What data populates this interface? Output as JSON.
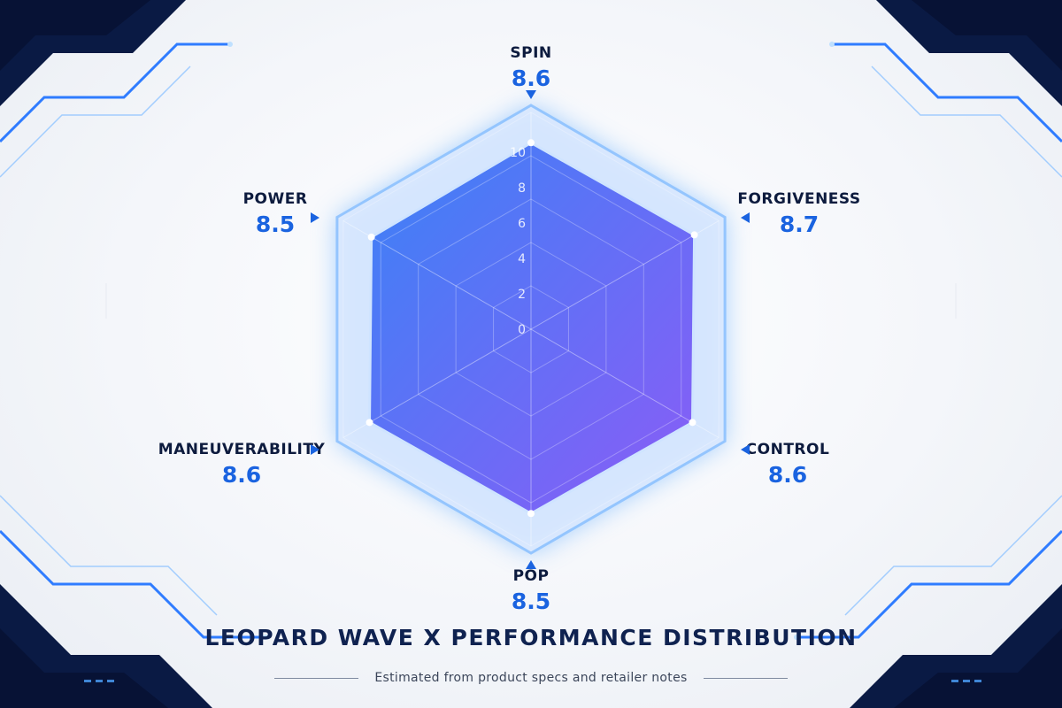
{
  "chart_data": {
    "type": "radar",
    "title": "LEOPARD WAVE X PERFORMANCE DISTRIBUTION",
    "subtitle": "Estimated from product specs and retailer notes",
    "axes": [
      "SPIN",
      "FORGIVENESS",
      "CONTROL",
      "POP",
      "MANEUVERABILITY",
      "POWER"
    ],
    "values": [
      8.6,
      8.7,
      8.6,
      8.5,
      8.6,
      8.5
    ],
    "value_labels": [
      "8.6",
      "8.7",
      "8.6",
      "8.5",
      "8.6",
      "8.5"
    ],
    "ticks": [
      "0",
      "2",
      "4",
      "6",
      "8",
      "10"
    ],
    "range": [
      0,
      10
    ],
    "fill_colors": [
      "#3b82f6",
      "#8b5cf6"
    ],
    "accent": "#1a63e0"
  }
}
